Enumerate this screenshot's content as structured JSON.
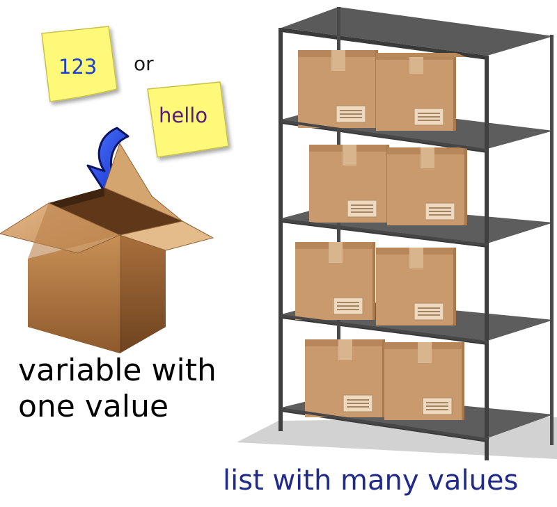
{
  "notes": [
    {
      "text": "123",
      "color": "#1a3fd1"
    },
    {
      "text": "hello",
      "color": "#5a1a7a"
    }
  ],
  "connector": "or",
  "single_box": {
    "caption_line1": "variable with",
    "caption_line2": "one value"
  },
  "shelf": {
    "caption": "list with many values"
  },
  "colors": {
    "sticky_note": "#fff97a",
    "arrow": "#1f3fe0",
    "cardboard": "#c99a6e",
    "shelf_frame": "#4a4a4a",
    "caption_blue": "#1f2a8a"
  }
}
